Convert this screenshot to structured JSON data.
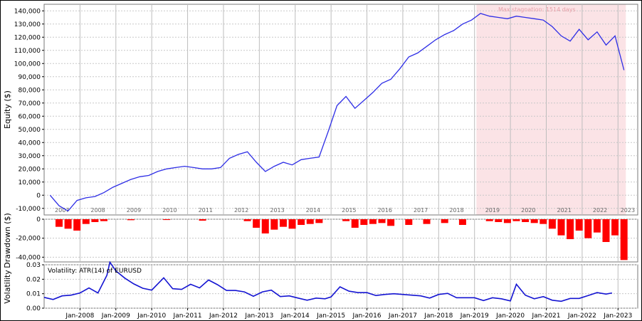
{
  "chart_data": [
    {
      "type": "line",
      "panel": "equity",
      "ylabel": "Equity ($)",
      "ylim": [
        -15000,
        145000
      ],
      "yticks": [
        -10000,
        0,
        10000,
        20000,
        30000,
        40000,
        50000,
        60000,
        70000,
        80000,
        90000,
        100000,
        110000,
        120000,
        130000,
        140000
      ],
      "ytick_labels": [
        "-10,000",
        "0",
        "10,000",
        "20,000",
        "30,000",
        "40,000",
        "50,000",
        "60,000",
        "70,000",
        "80,000",
        "90,000",
        "100,000",
        "110,000",
        "120,000",
        "130,000",
        "140,000"
      ],
      "year_labels": [
        "2007",
        "2008",
        "2009",
        "2010",
        "2011",
        "2012",
        "2013",
        "2014",
        "2015",
        "2016",
        "2017",
        "2018",
        "2019",
        "2020",
        "2021",
        "2022",
        "2023"
      ],
      "stagnation_label": "Max stagnation: 1514 days",
      "stagnation_range": [
        "2019-01-20",
        "2023-03-20"
      ],
      "grid": true,
      "series": [
        {
          "color": "#2e2ee6",
          "x": [
            "2007-03",
            "2007-06",
            "2007-09",
            "2007-12",
            "2008-03",
            "2008-06",
            "2008-09",
            "2008-12",
            "2009-03",
            "2009-06",
            "2009-09",
            "2009-12",
            "2010-03",
            "2010-06",
            "2010-09",
            "2010-12",
            "2011-03",
            "2011-06",
            "2011-09",
            "2011-12",
            "2012-03",
            "2012-06",
            "2012-09",
            "2012-12",
            "2013-03",
            "2013-06",
            "2013-09",
            "2013-12",
            "2014-03",
            "2014-06",
            "2014-09",
            "2014-12",
            "2015-03",
            "2015-06",
            "2015-09",
            "2015-12",
            "2016-03",
            "2016-06",
            "2016-09",
            "2016-12",
            "2017-03",
            "2017-06",
            "2017-09",
            "2017-12",
            "2018-03",
            "2018-06",
            "2018-09",
            "2018-12",
            "2019-03",
            "2019-06",
            "2019-09",
            "2019-12",
            "2020-03",
            "2020-06",
            "2020-09",
            "2020-12",
            "2021-03",
            "2021-06",
            "2021-09",
            "2021-12",
            "2022-03",
            "2022-06",
            "2022-09",
            "2022-12",
            "2023-03"
          ],
          "values": [
            0,
            -8000,
            -12000,
            -4000,
            -2000,
            -1000,
            2000,
            6000,
            9000,
            12000,
            14000,
            15000,
            18000,
            20000,
            21000,
            22000,
            21000,
            20000,
            20000,
            21000,
            28000,
            31000,
            33000,
            25000,
            18000,
            22000,
            25000,
            23000,
            27000,
            28000,
            29000,
            48000,
            68000,
            75000,
            66000,
            72000,
            78000,
            85000,
            88000,
            96000,
            105000,
            108000,
            113000,
            118000,
            122000,
            125000,
            130000,
            133000,
            138000,
            136000,
            135000,
            134000,
            136000,
            135000,
            134000,
            133000,
            128000,
            121000,
            117000,
            126000,
            118000,
            124000,
            114000,
            121000,
            95000
          ]
        }
      ]
    },
    {
      "type": "bar",
      "panel": "drawdown",
      "ylabel": "Drawdown ($)",
      "ylim": [
        -45000,
        0
      ],
      "yticks": [
        0,
        -20000,
        -40000
      ],
      "ytick_labels": [
        "0",
        "-20,000",
        "-40,000"
      ],
      "color": "#ff0000",
      "x": [
        "2007-06",
        "2007-09",
        "2007-12",
        "2008-03",
        "2008-06",
        "2008-09",
        "2009-06",
        "2010-06",
        "2011-06",
        "2012-09",
        "2012-12",
        "2013-03",
        "2013-06",
        "2013-09",
        "2013-12",
        "2014-03",
        "2014-06",
        "2014-09",
        "2015-06",
        "2015-09",
        "2015-12",
        "2016-03",
        "2016-06",
        "2016-09",
        "2017-03",
        "2017-09",
        "2018-03",
        "2018-09",
        "2019-06",
        "2019-09",
        "2019-12",
        "2020-03",
        "2020-06",
        "2020-09",
        "2020-12",
        "2021-03",
        "2021-06",
        "2021-09",
        "2021-12",
        "2022-03",
        "2022-06",
        "2022-09",
        "2022-12",
        "2023-03"
      ],
      "values": [
        -8000,
        -10000,
        -12000,
        -5000,
        -3000,
        -2000,
        -1000,
        -800,
        -1500,
        -2000,
        -9000,
        -15000,
        -11000,
        -8000,
        -10000,
        -6000,
        -5000,
        -4000,
        -2000,
        -9000,
        -6000,
        -5000,
        -4000,
        -7000,
        -6000,
        -5000,
        -4000,
        -6000,
        -2000,
        -3000,
        -4000,
        -2000,
        -3000,
        -4000,
        -5000,
        -10000,
        -17000,
        -21000,
        -12000,
        -20000,
        -14000,
        -24000,
        -17000,
        -43000
      ]
    },
    {
      "type": "line",
      "panel": "volatility",
      "ylabel": "Volatility",
      "legend": "Volatility: ATR(14) of EURUSD",
      "ylim": [
        0,
        0.03
      ],
      "yticks": [
        0,
        0.01,
        0.02,
        0.03
      ],
      "ytick_labels": [
        "0.00",
        "0.01",
        "0.02",
        "0.03"
      ],
      "xtick_labels": [
        "Jan-2008",
        "Jan-2009",
        "Jan-2010",
        "Jan-2011",
        "Jan-2012",
        "Jan-2013",
        "Jan-2014",
        "Jan-2015",
        "Jan-2016",
        "Jan-2017",
        "Jan-2018",
        "Jan-2019",
        "Jan-2020",
        "Jan-2021",
        "Jan-2022",
        "Jan-2023"
      ],
      "color": "#1414d2",
      "x": [
        "2007-01",
        "2007-04",
        "2007-07",
        "2007-10",
        "2008-01",
        "2008-04",
        "2008-07",
        "2008-10",
        "2008-11",
        "2009-01",
        "2009-04",
        "2009-07",
        "2009-10",
        "2010-01",
        "2010-05",
        "2010-08",
        "2010-11",
        "2011-02",
        "2011-05",
        "2011-08",
        "2011-11",
        "2012-02",
        "2012-05",
        "2012-08",
        "2012-11",
        "2013-02",
        "2013-05",
        "2013-08",
        "2013-11",
        "2014-02",
        "2014-05",
        "2014-08",
        "2014-11",
        "2015-01",
        "2015-04",
        "2015-07",
        "2015-10",
        "2016-01",
        "2016-04",
        "2016-07",
        "2016-10",
        "2017-01",
        "2017-04",
        "2017-07",
        "2017-10",
        "2018-01",
        "2018-04",
        "2018-07",
        "2018-10",
        "2019-01",
        "2019-04",
        "2019-07",
        "2019-10",
        "2020-01",
        "2020-03",
        "2020-06",
        "2020-09",
        "2020-12",
        "2021-03",
        "2021-06",
        "2021-09",
        "2021-12",
        "2022-03",
        "2022-06",
        "2022-09",
        "2022-11"
      ],
      "values": [
        0.006,
        0.007,
        0.008,
        0.009,
        0.011,
        0.013,
        0.012,
        0.024,
        0.031,
        0.026,
        0.021,
        0.016,
        0.015,
        0.014,
        0.02,
        0.014,
        0.013,
        0.016,
        0.015,
        0.018,
        0.015,
        0.013,
        0.012,
        0.011,
        0.009,
        0.01,
        0.011,
        0.009,
        0.008,
        0.007,
        0.006,
        0.006,
        0.008,
        0.009,
        0.014,
        0.012,
        0.011,
        0.01,
        0.01,
        0.011,
        0.009,
        0.01,
        0.009,
        0.008,
        0.008,
        0.008,
        0.009,
        0.008,
        0.007,
        0.007,
        0.006,
        0.006,
        0.005,
        0.006,
        0.016,
        0.009,
        0.007,
        0.007,
        0.007,
        0.006,
        0.006,
        0.007,
        0.009,
        0.01,
        0.011,
        0.012
      ]
    }
  ]
}
